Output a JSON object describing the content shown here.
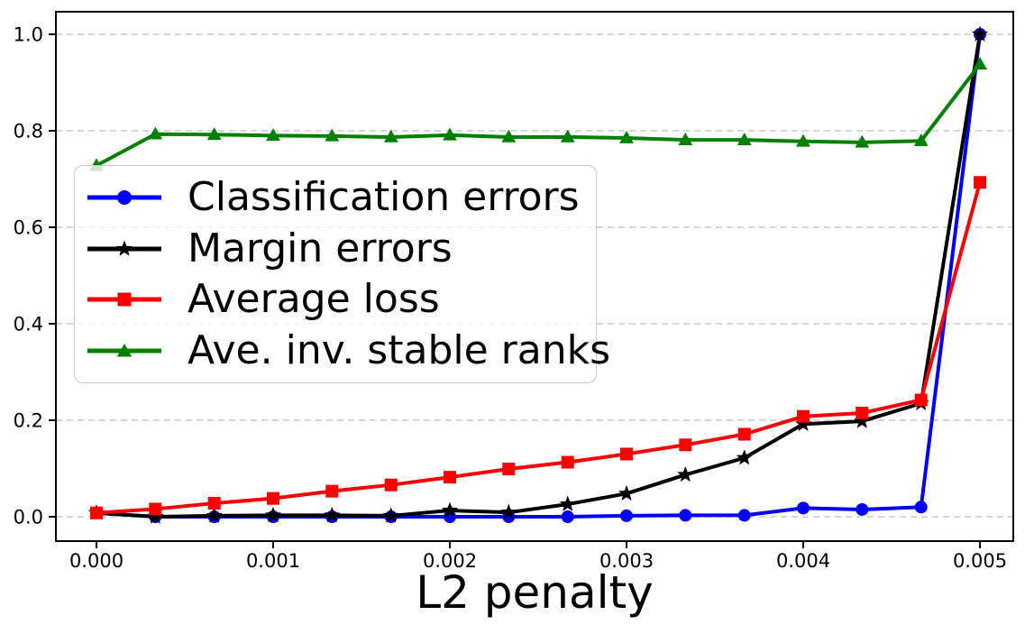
{
  "chart_data": {
    "type": "line",
    "title": "",
    "xlabel": "L2 penalty",
    "ylabel": "",
    "xlim": [
      -0.000245,
      0.00519
    ],
    "ylim": [
      -0.05,
      1.05
    ],
    "grid": "horizontal dashed gray lines at each y tick",
    "legend_position": "upper left inside axes",
    "x": [
      0.0,
      0.000333,
      0.000667,
      0.001,
      0.001333,
      0.001667,
      0.002,
      0.002333,
      0.002667,
      0.003,
      0.003333,
      0.003667,
      0.004,
      0.004333,
      0.004667,
      0.005
    ],
    "xticks": [
      0.0,
      0.001,
      0.002,
      0.003,
      0.004,
      0.005
    ],
    "xtick_labels": [
      "0.000",
      "0.001",
      "0.002",
      "0.003",
      "0.004",
      "0.005"
    ],
    "yticks": [
      0.0,
      0.2,
      0.4,
      0.6,
      0.8,
      1.0
    ],
    "ytick_labels": [
      "0.0",
      "0.2",
      "0.4",
      "0.6",
      "0.8",
      "1.0"
    ],
    "series": [
      {
        "name": "Classification errors",
        "color": "#0000ff",
        "marker": "circle",
        "values": [
          0.008,
          0.0,
          0.0,
          0.0,
          0.0,
          0.0,
          0.0,
          0.0,
          0.0,
          0.002,
          0.003,
          0.003,
          0.018,
          0.015,
          0.02,
          1.0
        ]
      },
      {
        "name": "Margin errors",
        "color": "#000000",
        "marker": "star",
        "values": [
          0.008,
          0.0,
          0.002,
          0.003,
          0.003,
          0.002,
          0.013,
          0.009,
          0.026,
          0.048,
          0.087,
          0.122,
          0.192,
          0.198,
          0.235,
          1.0
        ]
      },
      {
        "name": "Average loss",
        "color": "#ff0000",
        "marker": "square",
        "values": [
          0.008,
          0.016,
          0.028,
          0.038,
          0.053,
          0.066,
          0.082,
          0.099,
          0.113,
          0.13,
          0.149,
          0.171,
          0.208,
          0.215,
          0.242,
          0.693
        ]
      },
      {
        "name": "Ave. inv. stable ranks",
        "color": "#008000",
        "marker": "triangle",
        "values": [
          0.728,
          0.793,
          0.792,
          0.79,
          0.789,
          0.787,
          0.791,
          0.787,
          0.787,
          0.785,
          0.781,
          0.781,
          0.778,
          0.776,
          0.779,
          0.938
        ]
      }
    ]
  }
}
